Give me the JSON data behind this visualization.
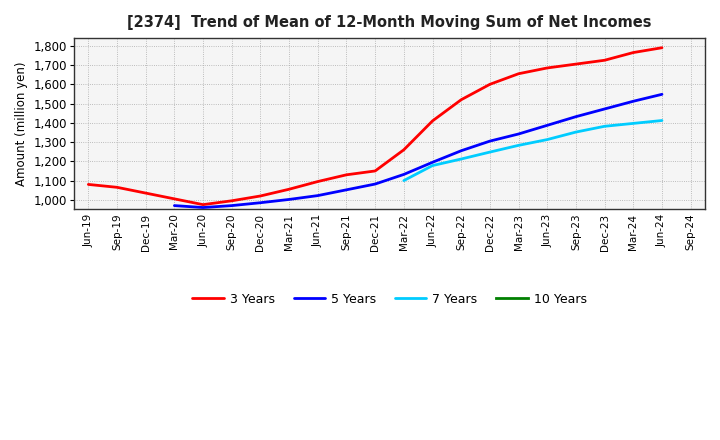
{
  "title": "[2374]  Trend of Mean of 12-Month Moving Sum of Net Incomes",
  "ylabel": "Amount (million yen)",
  "background_color": "#ffffff",
  "plot_background": "#f5f5f5",
  "ylim": [
    950,
    1840
  ],
  "yticks": [
    1000,
    1100,
    1200,
    1300,
    1400,
    1500,
    1600,
    1700,
    1800
  ],
  "x_labels": [
    "Jun-19",
    "Sep-19",
    "Dec-19",
    "Mar-20",
    "Jun-20",
    "Sep-20",
    "Dec-20",
    "Mar-21",
    "Jun-21",
    "Sep-21",
    "Dec-21",
    "Mar-22",
    "Jun-22",
    "Sep-22",
    "Dec-22",
    "Mar-23",
    "Jun-23",
    "Sep-23",
    "Dec-23",
    "Mar-24",
    "Jun-24",
    "Sep-24"
  ],
  "series": {
    "3 Years": {
      "color": "#ff0000",
      "data_x": [
        0,
        1,
        2,
        3,
        4,
        5,
        6,
        7,
        8,
        9,
        10,
        11,
        12,
        13,
        14,
        15,
        16,
        17,
        18,
        19,
        20
      ],
      "data_y": [
        1080,
        1065,
        1035,
        1005,
        975,
        995,
        1020,
        1055,
        1095,
        1130,
        1150,
        1260,
        1410,
        1520,
        1600,
        1655,
        1685,
        1705,
        1725,
        1765,
        1790
      ]
    },
    "5 Years": {
      "color": "#0000ff",
      "data_x": [
        3,
        4,
        5,
        6,
        7,
        8,
        9,
        10,
        11,
        12,
        13,
        14,
        15,
        16,
        17,
        18,
        19,
        20
      ],
      "data_y": [
        970,
        960,
        970,
        985,
        1002,
        1022,
        1052,
        1082,
        1132,
        1195,
        1255,
        1305,
        1342,
        1387,
        1432,
        1472,
        1512,
        1548
      ]
    },
    "7 Years": {
      "color": "#00ccff",
      "data_x": [
        11,
        12,
        13,
        14,
        15,
        16,
        17,
        18,
        19,
        20
      ],
      "data_y": [
        1100,
        1178,
        1212,
        1248,
        1283,
        1313,
        1352,
        1382,
        1397,
        1412
      ]
    },
    "10 Years": {
      "color": "#008000",
      "data_x": [],
      "data_y": []
    }
  },
  "legend_labels": [
    "3 Years",
    "5 Years",
    "7 Years",
    "10 Years"
  ],
  "legend_colors": [
    "#ff0000",
    "#0000ff",
    "#00ccff",
    "#008000"
  ]
}
